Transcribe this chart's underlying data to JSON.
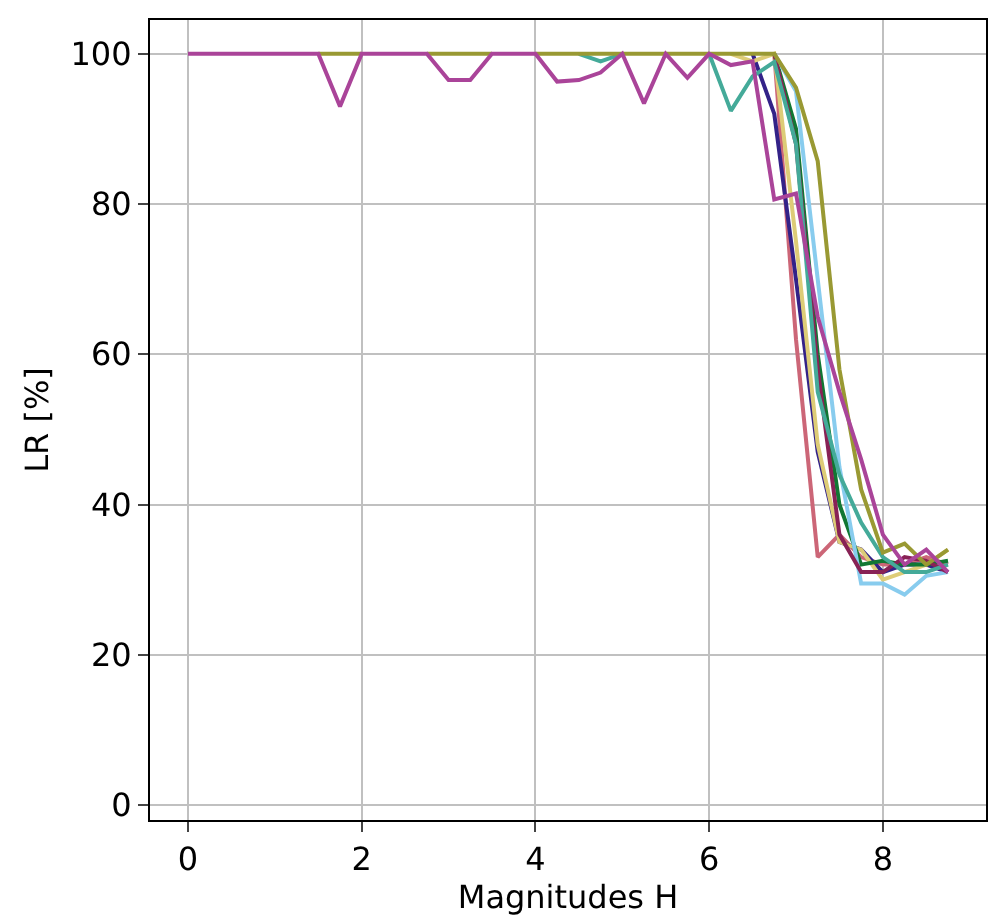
{
  "chart_data": {
    "type": "line",
    "xlabel": "Magnitudes H",
    "ylabel": "LR [%]",
    "x": [
      0,
      0.25,
      0.5,
      0.75,
      1,
      1.25,
      1.5,
      1.75,
      2,
      2.25,
      2.5,
      2.75,
      3,
      3.25,
      3.5,
      3.75,
      4,
      4.25,
      4.5,
      4.75,
      5,
      5.25,
      5.5,
      5.75,
      6,
      6.25,
      6.5,
      6.75,
      7,
      7.25,
      7.5,
      7.75,
      8,
      8.25,
      8.5,
      8.75
    ],
    "xlim": [
      -0.4375,
      9.1875
    ],
    "xticks": [
      0,
      2,
      4,
      6,
      8
    ],
    "ylim": [
      -2,
      104.5
    ],
    "yticks": [
      0,
      20,
      40,
      60,
      80,
      100
    ],
    "grid": true,
    "marker": "none",
    "line_style": "solid",
    "series": [
      {
        "color": "#cc6677",
        "values": [
          null,
          null,
          null,
          null,
          null,
          null,
          null,
          null,
          null,
          null,
          null,
          null,
          null,
          null,
          null,
          null,
          null,
          null,
          null,
          null,
          null,
          null,
          null,
          null,
          null,
          null,
          null,
          100,
          62,
          33,
          36,
          33,
          32,
          32,
          33,
          32
        ]
      },
      {
        "color": "#332288",
        "values": [
          null,
          null,
          null,
          null,
          null,
          null,
          null,
          null,
          null,
          null,
          null,
          null,
          null,
          null,
          null,
          null,
          null,
          null,
          null,
          null,
          null,
          null,
          null,
          null,
          null,
          null,
          100,
          92,
          70,
          47,
          35,
          34,
          31,
          32,
          32,
          31
        ]
      },
      {
        "color": "#ddcc77",
        "values": [
          null,
          null,
          null,
          null,
          null,
          null,
          null,
          null,
          null,
          null,
          null,
          null,
          null,
          null,
          null,
          null,
          null,
          null,
          null,
          null,
          null,
          null,
          null,
          null,
          null,
          100,
          99,
          100,
          75,
          48,
          35,
          34,
          30,
          31,
          32,
          34
        ]
      },
      {
        "color": "#117733",
        "values": [
          null,
          null,
          null,
          null,
          null,
          null,
          null,
          null,
          null,
          null,
          null,
          null,
          null,
          null,
          null,
          null,
          null,
          null,
          null,
          null,
          null,
          null,
          null,
          null,
          null,
          null,
          null,
          100,
          90,
          60,
          40,
          32,
          32.5,
          32,
          32,
          32.5
        ]
      },
      {
        "color": "#88ccee",
        "values": [
          null,
          null,
          null,
          null,
          null,
          null,
          null,
          null,
          null,
          null,
          null,
          null,
          null,
          null,
          null,
          null,
          null,
          null,
          null,
          null,
          null,
          null,
          null,
          null,
          null,
          null,
          null,
          100,
          95,
          70,
          45,
          29.5,
          29.5,
          28,
          30.5,
          31
        ]
      },
      {
        "color": "#882255",
        "values": [
          null,
          null,
          null,
          null,
          null,
          null,
          null,
          null,
          null,
          null,
          null,
          null,
          null,
          null,
          null,
          null,
          null,
          null,
          null,
          null,
          null,
          null,
          null,
          null,
          null,
          null,
          null,
          100,
          88,
          58,
          36,
          31,
          31,
          33,
          32.5,
          31
        ]
      },
      {
        "color": "#44aa99",
        "values": [
          null,
          null,
          null,
          null,
          null,
          null,
          null,
          null,
          null,
          null,
          null,
          null,
          null,
          null,
          null,
          null,
          null,
          null,
          100,
          99,
          100,
          null,
          null,
          null,
          100,
          92.4,
          97,
          98.9,
          88,
          55,
          44,
          37.6,
          33,
          31,
          31,
          32
        ]
      },
      {
        "color": "#999933",
        "values": [
          null,
          null,
          null,
          null,
          null,
          null,
          100,
          100,
          100,
          null,
          null,
          100,
          100,
          100,
          100,
          null,
          100,
          100,
          100,
          100,
          100,
          100,
          100,
          100,
          100,
          100,
          100,
          100,
          95.5,
          85.7,
          58,
          42,
          33.6,
          34.8,
          32,
          34
        ]
      },
      {
        "color": "#aa4499",
        "values": [
          100,
          100,
          100,
          100,
          100,
          100,
          100,
          93,
          100,
          100,
          100,
          100,
          96.5,
          96.5,
          100,
          100,
          100,
          96.3,
          96.5,
          97.5,
          100,
          93.4,
          100,
          96.8,
          100,
          98.5,
          99,
          80.6,
          81.4,
          65,
          55,
          46,
          36,
          32,
          34,
          31
        ]
      }
    ]
  }
}
